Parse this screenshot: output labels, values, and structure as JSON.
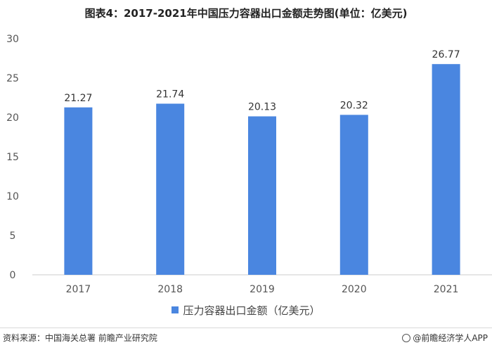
{
  "title": "图表4：2017-2021年中国压力容器出口金额走势图(单位：亿美元)",
  "source": "资料来源：中国海关总署 前瞻产业研究院",
  "brand": "@前瞻经济学人APP",
  "colors": {
    "bar": "#4A86E0",
    "axis": "#cccccc"
  },
  "chart_data": {
    "type": "bar",
    "categories": [
      "2017",
      "2018",
      "2019",
      "2020",
      "2021"
    ],
    "series": [
      {
        "name": "压力容器出口金额（亿美元）",
        "values": [
          21.27,
          21.74,
          20.13,
          20.32,
          26.77
        ]
      }
    ],
    "value_labels": [
      "21.27",
      "21.74",
      "20.13",
      "20.32",
      "26.77"
    ],
    "ylim": [
      0,
      30
    ],
    "yticks": [
      0,
      5,
      10,
      15,
      20,
      25,
      30
    ],
    "grid": false,
    "legend_position": "bottom"
  }
}
